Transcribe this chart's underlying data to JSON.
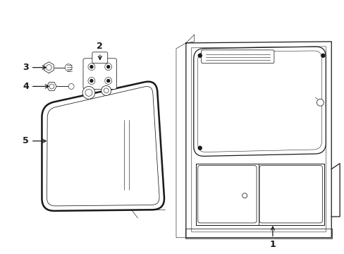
{
  "background_color": "#ffffff",
  "line_color": "#1a1a1a",
  "lw_thick": 1.4,
  "lw_med": 0.9,
  "lw_thin": 0.55,
  "fig_width": 4.89,
  "fig_height": 3.6,
  "dpi": 100
}
